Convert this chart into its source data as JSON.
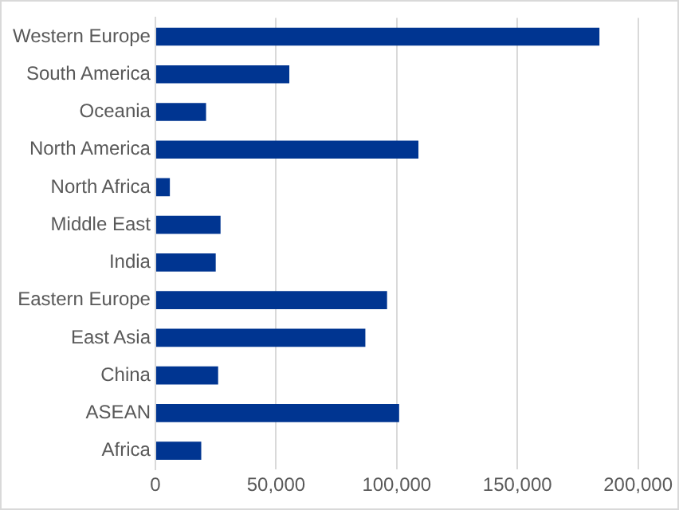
{
  "chart_data": {
    "type": "bar",
    "orientation": "horizontal",
    "categories": [
      "Western Europe",
      "South America",
      "Oceania",
      "North America",
      "North Africa",
      "Middle East",
      "India",
      "Eastern Europe",
      "East Asia",
      "China",
      "ASEAN",
      "Africa"
    ],
    "values": [
      184000,
      55500,
      21000,
      109000,
      6000,
      27000,
      25000,
      96000,
      87000,
      26000,
      101000,
      19000
    ],
    "color": "#003591",
    "xlim": [
      0,
      200000
    ],
    "xticks": [
      {
        "value": 0,
        "label": "0"
      },
      {
        "value": 50000,
        "label": "50,000"
      },
      {
        "value": 100000,
        "label": "100,000"
      },
      {
        "value": 150000,
        "label": "150,000"
      },
      {
        "value": 200000,
        "label": "200,000"
      }
    ],
    "grid": "x",
    "legend": false
  }
}
